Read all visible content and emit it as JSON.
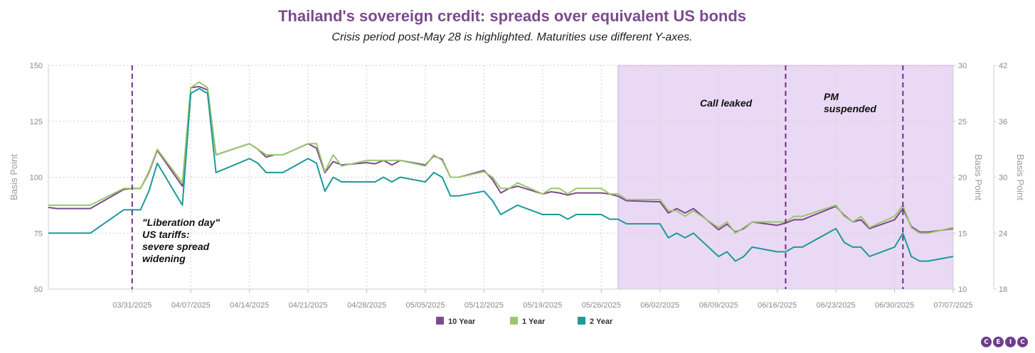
{
  "title": "Thailand's sovereign credit: spreads over equivalent US bonds",
  "subtitle": "Crisis period post-May 28 is highlighted. Maturities use different Y-axes.",
  "logo_text": "CEIC",
  "chart_data": {
    "type": "line",
    "title": "Thailand's sovereign credit: spreads over equivalent US bonds",
    "x_ticks": [
      "03/31/2025",
      "04/07/2025",
      "04/14/2025",
      "04/21/2025",
      "04/28/2025",
      "05/05/2025",
      "05/12/2025",
      "05/19/2025",
      "05/26/2025",
      "06/02/2025",
      "06/09/2025",
      "06/16/2025",
      "06/23/2025",
      "06/30/2025",
      "07/07/2025"
    ],
    "x_range": [
      "03/21/2025",
      "07/07/2025"
    ],
    "y_axes": {
      "left": {
        "label": "Basis Point",
        "range": [
          50,
          150
        ],
        "ticks": [
          50,
          75,
          100,
          125,
          150
        ],
        "series": "10 Year"
      },
      "right1": {
        "label": "Basis Point",
        "range": [
          10,
          30
        ],
        "ticks": [
          10,
          15,
          20,
          25,
          30
        ],
        "series": "1 Year"
      },
      "right2": {
        "label": "Basis Point",
        "range": [
          18,
          42
        ],
        "ticks": [
          18,
          24,
          30,
          36,
          42
        ],
        "series": "2 Year"
      }
    },
    "highlight": {
      "start": "05/28/2025",
      "end": "07/07/2025",
      "color": "#ead9f5"
    },
    "vlines": [
      "03/31/2025",
      "06/17/2025",
      "07/01/2025"
    ],
    "annotations": [
      {
        "lines": [
          "\"Liberation day\"",
          "US tariffs:",
          "severe spread",
          "widening"
        ]
      },
      {
        "lines": [
          "Call leaked"
        ]
      },
      {
        "lines": [
          "PM",
          "suspended"
        ]
      }
    ],
    "legend": [
      "10 Year",
      "1 Year",
      "2 Year"
    ],
    "series": [
      {
        "name": "10 Year",
        "color": "#7b4a8e",
        "axis": "left",
        "points": [
          [
            "03/21/2025",
            86.5
          ],
          [
            "03/22/2025",
            86
          ],
          [
            "03/26/2025",
            86
          ],
          [
            "03/30/2025",
            94.5
          ],
          [
            "03/31/2025",
            95
          ],
          [
            "04/01/2025",
            95
          ],
          [
            "04/02/2025",
            102
          ],
          [
            "04/03/2025",
            112
          ],
          [
            "04/06/2025",
            96
          ],
          [
            "04/07/2025",
            140
          ],
          [
            "04/08/2025",
            140.5
          ],
          [
            "04/09/2025",
            139
          ],
          [
            "04/10/2025",
            110
          ],
          [
            "04/14/2025",
            115
          ],
          [
            "04/15/2025",
            112.5
          ],
          [
            "04/16/2025",
            109
          ],
          [
            "04/17/2025",
            110
          ],
          [
            "04/18/2025",
            110
          ],
          [
            "04/21/2025",
            115
          ],
          [
            "04/22/2025",
            113
          ],
          [
            "04/23/2025",
            102
          ],
          [
            "04/24/2025",
            107
          ],
          [
            "04/25/2025",
            105.5
          ],
          [
            "04/28/2025",
            106.5
          ],
          [
            "04/29/2025",
            106
          ],
          [
            "04/30/2025",
            107.5
          ],
          [
            "05/01/2025",
            105.5
          ],
          [
            "05/02/2025",
            107.5
          ],
          [
            "05/05/2025",
            105.5
          ],
          [
            "05/06/2025",
            109.5
          ],
          [
            "05/07/2025",
            108
          ],
          [
            "05/08/2025",
            100
          ],
          [
            "05/09/2025",
            100
          ],
          [
            "05/12/2025",
            103
          ],
          [
            "05/13/2025",
            99
          ],
          [
            "05/14/2025",
            93
          ],
          [
            "05/15/2025",
            95
          ],
          [
            "05/16/2025",
            96
          ],
          [
            "05/19/2025",
            92.5
          ],
          [
            "05/20/2025",
            93.5
          ],
          [
            "05/21/2025",
            93
          ],
          [
            "05/22/2025",
            92
          ],
          [
            "05/23/2025",
            93
          ],
          [
            "05/26/2025",
            93
          ],
          [
            "05/27/2025",
            92.5
          ],
          [
            "05/28/2025",
            91.5
          ],
          [
            "05/29/2025",
            89.5
          ],
          [
            "06/02/2025",
            89
          ],
          [
            "06/03/2025",
            84
          ],
          [
            "06/04/2025",
            86
          ],
          [
            "06/05/2025",
            84
          ],
          [
            "06/06/2025",
            86
          ],
          [
            "06/09/2025",
            76.5
          ],
          [
            "06/10/2025",
            79
          ],
          [
            "06/11/2025",
            75.5
          ],
          [
            "06/12/2025",
            77
          ],
          [
            "06/13/2025",
            80
          ],
          [
            "06/16/2025",
            78.5
          ],
          [
            "06/17/2025",
            79.5
          ],
          [
            "06/18/2025",
            81
          ],
          [
            "06/19/2025",
            81
          ],
          [
            "06/23/2025",
            87
          ],
          [
            "06/24/2025",
            83
          ],
          [
            "06/25/2025",
            80
          ],
          [
            "06/26/2025",
            81
          ],
          [
            "06/27/2025",
            77
          ],
          [
            "06/30/2025",
            81
          ],
          [
            "07/01/2025",
            86
          ],
          [
            "07/02/2025",
            78
          ],
          [
            "07/03/2025",
            75.5
          ],
          [
            "07/04/2025",
            75.5
          ],
          [
            "07/07/2025",
            77
          ]
        ]
      },
      {
        "name": "1 Year",
        "color": "#9ac76b",
        "axis": "right1",
        "points": [
          [
            "03/21/2025",
            17.5
          ],
          [
            "03/26/2025",
            17.5
          ],
          [
            "03/30/2025",
            19
          ],
          [
            "03/31/2025",
            19
          ],
          [
            "04/01/2025",
            19
          ],
          [
            "04/02/2025",
            20.5
          ],
          [
            "04/03/2025",
            22.5
          ],
          [
            "04/06/2025",
            19.5
          ],
          [
            "04/07/2025",
            28
          ],
          [
            "04/08/2025",
            28.5
          ],
          [
            "04/09/2025",
            28
          ],
          [
            "04/10/2025",
            22
          ],
          [
            "04/14/2025",
            23
          ],
          [
            "04/15/2025",
            22.5
          ],
          [
            "04/16/2025",
            22
          ],
          [
            "04/17/2025",
            22
          ],
          [
            "04/18/2025",
            22
          ],
          [
            "04/21/2025",
            23
          ],
          [
            "04/22/2025",
            23
          ],
          [
            "04/23/2025",
            20.5
          ],
          [
            "04/24/2025",
            22
          ],
          [
            "04/25/2025",
            21
          ],
          [
            "04/28/2025",
            21.5
          ],
          [
            "04/29/2025",
            21.5
          ],
          [
            "04/30/2025",
            21.5
          ],
          [
            "05/01/2025",
            21.5
          ],
          [
            "05/02/2025",
            21.5
          ],
          [
            "05/05/2025",
            21
          ],
          [
            "05/06/2025",
            22
          ],
          [
            "05/07/2025",
            21.5
          ],
          [
            "05/08/2025",
            20
          ],
          [
            "05/09/2025",
            20
          ],
          [
            "05/12/2025",
            20.5
          ],
          [
            "05/13/2025",
            20
          ],
          [
            "05/14/2025",
            19
          ],
          [
            "05/15/2025",
            19
          ],
          [
            "05/16/2025",
            19.5
          ],
          [
            "05/19/2025",
            18.5
          ],
          [
            "05/20/2025",
            19
          ],
          [
            "05/21/2025",
            19
          ],
          [
            "05/22/2025",
            18.5
          ],
          [
            "05/23/2025",
            19
          ],
          [
            "05/26/2025",
            19
          ],
          [
            "05/27/2025",
            18.5
          ],
          [
            "05/28/2025",
            18.5
          ],
          [
            "05/29/2025",
            18
          ],
          [
            "06/02/2025",
            18
          ],
          [
            "06/03/2025",
            17
          ],
          [
            "06/04/2025",
            17
          ],
          [
            "06/05/2025",
            16.5
          ],
          [
            "06/06/2025",
            17
          ],
          [
            "06/09/2025",
            15.5
          ],
          [
            "06/10/2025",
            16
          ],
          [
            "06/11/2025",
            15
          ],
          [
            "06/12/2025",
            15.5
          ],
          [
            "06/13/2025",
            16
          ],
          [
            "06/16/2025",
            16
          ],
          [
            "06/17/2025",
            16
          ],
          [
            "06/18/2025",
            16.5
          ],
          [
            "06/19/2025",
            16.5
          ],
          [
            "06/23/2025",
            17.5
          ],
          [
            "06/24/2025",
            16.5
          ],
          [
            "06/25/2025",
            16
          ],
          [
            "06/26/2025",
            16.5
          ],
          [
            "06/27/2025",
            15.5
          ],
          [
            "06/30/2025",
            16.5
          ],
          [
            "07/01/2025",
            17.5
          ],
          [
            "07/02/2025",
            15.5
          ],
          [
            "07/03/2025",
            15
          ],
          [
            "07/04/2025",
            15
          ],
          [
            "07/07/2025",
            15.5
          ]
        ]
      },
      {
        "name": "2 Year",
        "color": "#1a9a9a",
        "axis": "right2",
        "points": [
          [
            "03/21/2025",
            24
          ],
          [
            "03/26/2025",
            24
          ],
          [
            "03/30/2025",
            26.5
          ],
          [
            "03/31/2025",
            26.5
          ],
          [
            "04/01/2025",
            26.5
          ],
          [
            "04/02/2025",
            28.5
          ],
          [
            "04/03/2025",
            31.5
          ],
          [
            "04/06/2025",
            27
          ],
          [
            "04/07/2025",
            39
          ],
          [
            "04/08/2025",
            39.5
          ],
          [
            "04/09/2025",
            39
          ],
          [
            "04/10/2025",
            30.5
          ],
          [
            "04/14/2025",
            32
          ],
          [
            "04/15/2025",
            31.5
          ],
          [
            "04/16/2025",
            30.5
          ],
          [
            "04/17/2025",
            30.5
          ],
          [
            "04/18/2025",
            30.5
          ],
          [
            "04/21/2025",
            32
          ],
          [
            "04/22/2025",
            31.5
          ],
          [
            "04/23/2025",
            28.5
          ],
          [
            "04/24/2025",
            30
          ],
          [
            "04/25/2025",
            29.5
          ],
          [
            "04/28/2025",
            29.5
          ],
          [
            "04/29/2025",
            29.5
          ],
          [
            "04/30/2025",
            30
          ],
          [
            "05/01/2025",
            29.5
          ],
          [
            "05/02/2025",
            30
          ],
          [
            "05/05/2025",
            29.5
          ],
          [
            "05/06/2025",
            30.5
          ],
          [
            "05/07/2025",
            30
          ],
          [
            "05/08/2025",
            28
          ],
          [
            "05/09/2025",
            28
          ],
          [
            "05/12/2025",
            28.5
          ],
          [
            "05/13/2025",
            27.5
          ],
          [
            "05/14/2025",
            26
          ],
          [
            "05/15/2025",
            26.5
          ],
          [
            "05/16/2025",
            27
          ],
          [
            "05/19/2025",
            26
          ],
          [
            "05/20/2025",
            26
          ],
          [
            "05/21/2025",
            26
          ],
          [
            "05/22/2025",
            25.5
          ],
          [
            "05/23/2025",
            26
          ],
          [
            "05/26/2025",
            26
          ],
          [
            "05/27/2025",
            25.5
          ],
          [
            "05/28/2025",
            25.5
          ],
          [
            "05/29/2025",
            25
          ],
          [
            "06/02/2025",
            25
          ],
          [
            "06/03/2025",
            23.5
          ],
          [
            "06/04/2025",
            24
          ],
          [
            "06/05/2025",
            23.5
          ],
          [
            "06/06/2025",
            24
          ],
          [
            "06/09/2025",
            21.5
          ],
          [
            "06/10/2025",
            22
          ],
          [
            "06/11/2025",
            21
          ],
          [
            "06/12/2025",
            21.5
          ],
          [
            "06/13/2025",
            22.5
          ],
          [
            "06/16/2025",
            22
          ],
          [
            "06/17/2025",
            22
          ],
          [
            "06/18/2025",
            22.5
          ],
          [
            "06/19/2025",
            22.5
          ],
          [
            "06/23/2025",
            24.5
          ],
          [
            "06/24/2025",
            23
          ],
          [
            "06/25/2025",
            22.5
          ],
          [
            "06/26/2025",
            22.5
          ],
          [
            "06/27/2025",
            21.5
          ],
          [
            "06/30/2025",
            22.5
          ],
          [
            "07/01/2025",
            24
          ],
          [
            "07/02/2025",
            21.5
          ],
          [
            "07/03/2025",
            21
          ],
          [
            "07/04/2025",
            21
          ],
          [
            "07/07/2025",
            21.5
          ]
        ]
      }
    ]
  }
}
